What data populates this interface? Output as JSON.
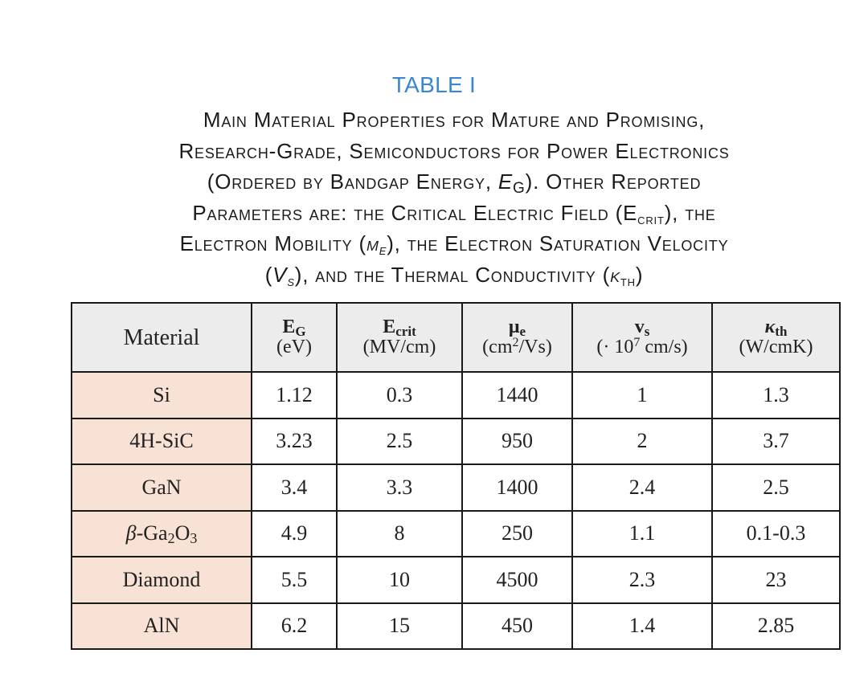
{
  "table_label": "TABLE I",
  "caption": {
    "line1": "Main Material Properties for Mature and Promising,",
    "line2": "Research-Grade, Semiconductors for Power Electronics",
    "line3": "(Ordered by Bandgap Energy, ",
    "eg_symbol": "E",
    "eg_sub": "G",
    "line3_end": "). Other Reported",
    "line4": "Parameters are: the Critical Electric Field (E",
    "ecrit_sub": "crit",
    "line4_end": "), the",
    "line5": "Electron Mobility (",
    "mu_symbol": "μ",
    "mu_sub": "e",
    "line5_end": "), the Electron Saturation Velocity",
    "paren_open": "(",
    "vs_symbol": "V",
    "vs_sub": "s",
    "line6": "), and the Thermal Conductivity (",
    "kappa_symbol": "κ",
    "kappa_sub": "th",
    "paren_close": ")"
  },
  "table": {
    "headers": {
      "material": "Material",
      "eg": {
        "symbol": "E",
        "sub": "G",
        "unit": "(eV)"
      },
      "ecrit": {
        "symbol": "E",
        "sub": "crit",
        "unit": "(MV/cm)"
      },
      "mu": {
        "symbol": "μ",
        "sub": "e",
        "unit_pre": "(cm",
        "unit_sup": "2",
        "unit_post": "/Vs)"
      },
      "vs": {
        "symbol": "v",
        "sub": "s",
        "unit_pre": "(· 10",
        "unit_sup": "7",
        "unit_post": " cm/s)"
      },
      "kappa": {
        "symbol": "κ",
        "sub": "th",
        "unit": "(W/cmK)"
      }
    },
    "rows": [
      {
        "material": "Si",
        "eg": "1.12",
        "ecrit": "0.3",
        "mu": "1440",
        "vs": "1",
        "kappa": "1.3"
      },
      {
        "material": "4H-SiC",
        "eg": "3.23",
        "ecrit": "2.5",
        "mu": "950",
        "vs": "2",
        "kappa": "3.7"
      },
      {
        "material": "GaN",
        "eg": "3.4",
        "ecrit": "3.3",
        "mu": "1400",
        "vs": "2.4",
        "kappa": "2.5"
      },
      {
        "material_parts": {
          "beta": "β",
          "rest": "-Ga",
          "sub1": "2",
          "o": "O",
          "sub2": "3"
        },
        "eg": "4.9",
        "ecrit": "8",
        "mu": "250",
        "vs": "1.1",
        "kappa": "0.1-0.3"
      },
      {
        "material": "Diamond",
        "eg": "5.5",
        "ecrit": "10",
        "mu": "4500",
        "vs": "2.3",
        "kappa": "23"
      },
      {
        "material": "AlN",
        "eg": "6.2",
        "ecrit": "15",
        "mu": "450",
        "vs": "1.4",
        "kappa": "2.85"
      }
    ]
  },
  "colors": {
    "label": "#3a86d1",
    "header_bg": "#ececec",
    "material_bg": "#f7e2d5"
  }
}
